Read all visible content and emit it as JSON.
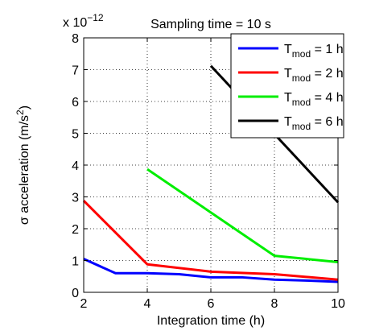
{
  "chart_data": {
    "type": "line",
    "title": "Sampling time = 10 s",
    "xlabel": "Integration time (h)",
    "ylabel_main": "σ acceleration (m/s",
    "ylabel_sup": "2",
    "ylabel_end": ")",
    "y_multiplier_base": "x 10",
    "y_multiplier_exp": "−12",
    "xlim": [
      2,
      10
    ],
    "ylim": [
      0,
      8
    ],
    "xticks": [
      2,
      4,
      6,
      8,
      10
    ],
    "yticks": [
      0,
      1,
      2,
      3,
      4,
      5,
      6,
      7,
      8
    ],
    "grid": true,
    "legend_placement": "top-right",
    "series": [
      {
        "name_main": "T",
        "name_sub": "mod",
        "name_rest": " = 1 h",
        "color": "#0000ff",
        "x": [
          2,
          3,
          4,
          5,
          6,
          7,
          8,
          9,
          10
        ],
        "y": [
          1.05,
          0.6,
          0.6,
          0.57,
          0.47,
          0.47,
          0.4,
          0.37,
          0.33
        ]
      },
      {
        "name_main": "T",
        "name_sub": "mod",
        "name_rest": " = 2 h",
        "color": "#ff0000",
        "x": [
          2,
          4,
          6,
          8,
          10
        ],
        "y": [
          2.88,
          0.88,
          0.65,
          0.57,
          0.4
        ]
      },
      {
        "name_main": "T",
        "name_sub": "mod",
        "name_rest": " = 4 h",
        "color": "#00ee00",
        "x": [
          4,
          8,
          10
        ],
        "y": [
          3.87,
          1.15,
          0.95
        ]
      },
      {
        "name_main": "T",
        "name_sub": "mod",
        "name_rest": " = 6 h",
        "color": "#000000",
        "x": [
          6,
          10
        ],
        "y": [
          7.12,
          2.83
        ]
      }
    ]
  }
}
